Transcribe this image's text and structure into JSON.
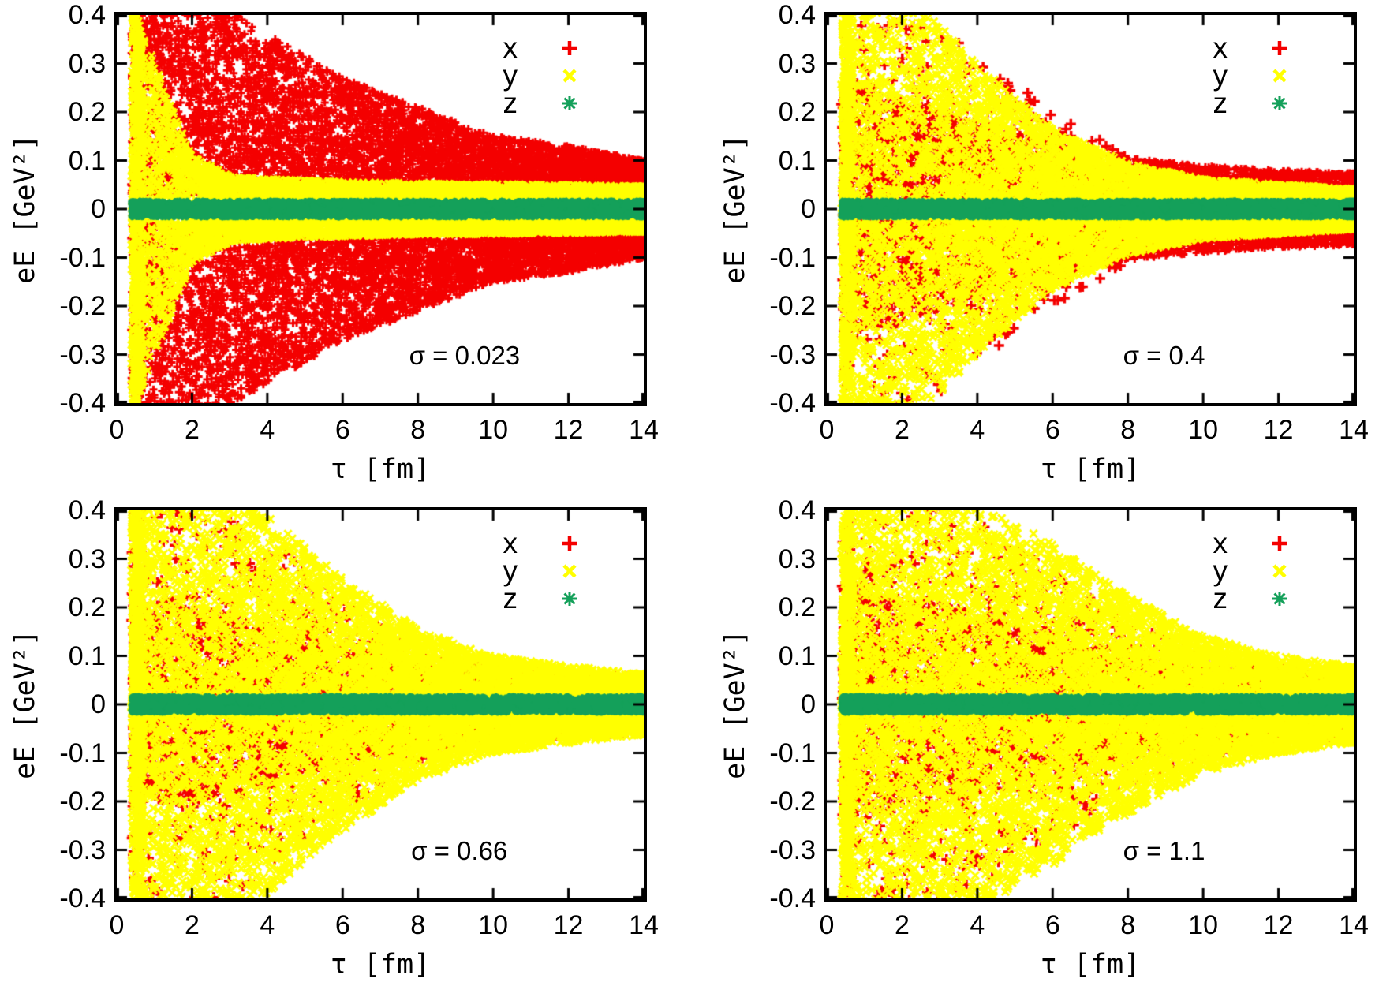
{
  "page": {
    "background": "#ffffff"
  },
  "chart_data": [
    {
      "type": "scatter",
      "sigma_label": "σ = 0.023",
      "xlabel": "τ [fm]",
      "ylabel": "eE [GeV²]",
      "xlim": [
        0,
        14
      ],
      "ylim": [
        -0.4,
        0.4
      ],
      "xticks": [
        "0",
        "2",
        "4",
        "6",
        "8",
        "10",
        "12",
        "14"
      ],
      "yticks": [
        "0.4",
        "0.3",
        "0.2",
        "0.1",
        "0",
        "-0.1",
        "-0.2",
        "-0.3",
        "-0.4"
      ],
      "grid": false,
      "legend_position": "top-right-inside",
      "legend": [
        {
          "label": "x",
          "marker": "plus",
          "color": "#f40000"
        },
        {
          "label": "y",
          "marker": "cross",
          "color": "#ffff00"
        },
        {
          "label": "z",
          "marker": "star",
          "color": "#14a05a"
        }
      ],
      "sigma_pos": {
        "x": 0.66,
        "y": 0.878
      },
      "tau_knots": [
        0.4,
        1,
        2,
        3,
        4,
        6,
        8,
        10,
        12,
        14
      ],
      "series": [
        {
          "name": "x",
          "marker": "plus",
          "color": "#f40000",
          "mode": "band",
          "inner": 0.028,
          "bias": 1.15,
          "amp": [
            0.43,
            0.43,
            0.43,
            0.41,
            0.36,
            0.27,
            0.21,
            0.15,
            0.13,
            0.1
          ],
          "count": 11000,
          "size": 10,
          "stroke": 3,
          "seed": 11,
          "edge_cluster": 0.04,
          "left_cluster": 0.03
        },
        {
          "name": "y",
          "marker": "cross",
          "color": "#ffff00",
          "mode": "full",
          "bias": 1,
          "amp": [
            0.43,
            0.3,
            0.11,
            0.068,
            0.062,
            0.057,
            0.053,
            0.052,
            0.05,
            0.047
          ],
          "count": 8500,
          "size": 11,
          "stroke": 3,
          "seed": 22,
          "edge_cluster": 0.05,
          "left_cluster": 0.06
        },
        {
          "name": "z",
          "marker": "star",
          "color": "#14a05a",
          "mode": "full",
          "bias": 1,
          "amp": [
            0.017,
            0.017,
            0.017,
            0.017,
            0.017,
            0.017,
            0.017,
            0.017,
            0.017,
            0.017
          ],
          "count": 4000,
          "size": 8,
          "stroke": 2.5,
          "seed": 33,
          "edge_cluster": 0.05,
          "left_cluster": 0.03
        }
      ]
    },
    {
      "type": "scatter",
      "sigma_label": "σ = 0.4",
      "xlabel": "τ [fm]",
      "ylabel": "eE [GeV²]",
      "xlim": [
        0,
        14
      ],
      "ylim": [
        -0.4,
        0.4
      ],
      "xticks": [
        "0",
        "2",
        "4",
        "6",
        "8",
        "10",
        "12",
        "14"
      ],
      "yticks": [
        "0.4",
        "0.3",
        "0.2",
        "0.1",
        "0",
        "-0.1",
        "-0.2",
        "-0.3",
        "-0.4"
      ],
      "grid": false,
      "legend_position": "top-right-inside",
      "legend": [
        {
          "label": "x",
          "marker": "plus",
          "color": "#f40000"
        },
        {
          "label": "y",
          "marker": "cross",
          "color": "#ffff00"
        },
        {
          "label": "z",
          "marker": "star",
          "color": "#14a05a"
        }
      ],
      "sigma_pos": {
        "x": 0.64,
        "y": 0.878
      },
      "tau_knots": [
        0.4,
        1,
        2,
        3,
        4,
        6,
        8,
        10,
        12,
        14
      ],
      "series": [
        {
          "name": "x",
          "marker": "plus",
          "color": "#f40000",
          "mode": "full",
          "bias": 1,
          "amp": [
            0.43,
            0.43,
            0.42,
            0.38,
            0.32,
            0.2,
            0.11,
            0.07,
            0.05,
            0.045
          ],
          "count": 1000,
          "size": 13,
          "stroke": 3.5,
          "seed": 44,
          "edge_cluster": 0.02,
          "left_cluster": 0.04
        },
        {
          "name": "x",
          "marker": "plus",
          "color": "#f40000",
          "mode": "band",
          "inner": 0.012,
          "bias": 1.2,
          "amp": [
            0.26,
            0.25,
            0.23,
            0.21,
            0.18,
            0.135,
            0.105,
            0.09,
            0.08,
            0.075
          ],
          "count": 7000,
          "size": 9,
          "stroke": 3,
          "seed": 55,
          "edge_cluster": 0.05,
          "left_cluster": 0.02
        },
        {
          "name": "y",
          "marker": "cross",
          "color": "#ffff00",
          "mode": "full",
          "bias": 1.4,
          "amp": [
            0.43,
            0.43,
            0.43,
            0.38,
            0.3,
            0.165,
            0.095,
            0.062,
            0.052,
            0.042
          ],
          "count": 10000,
          "size": 11,
          "stroke": 3,
          "seed": 66,
          "edge_cluster": 0.05,
          "left_cluster": 0.06
        },
        {
          "name": "z",
          "marker": "star",
          "color": "#14a05a",
          "mode": "full",
          "bias": 1,
          "amp": [
            0.017,
            0.017,
            0.017,
            0.017,
            0.017,
            0.017,
            0.017,
            0.017,
            0.017,
            0.017
          ],
          "count": 4000,
          "size": 8,
          "stroke": 2.5,
          "seed": 77,
          "edge_cluster": 0.05,
          "left_cluster": 0.03
        }
      ]
    },
    {
      "type": "scatter",
      "sigma_label": "σ = 0.66",
      "xlabel": "τ [fm]",
      "ylabel": "eE [GeV²]",
      "xlim": [
        0,
        14
      ],
      "ylim": [
        -0.4,
        0.4
      ],
      "xticks": [
        "0",
        "2",
        "4",
        "6",
        "8",
        "10",
        "12",
        "14"
      ],
      "yticks": [
        "0.4",
        "0.3",
        "0.2",
        "0.1",
        "0",
        "-0.1",
        "-0.2",
        "-0.3",
        "-0.4"
      ],
      "grid": false,
      "legend_position": "top-right-inside",
      "legend": [
        {
          "label": "x",
          "marker": "plus",
          "color": "#f40000"
        },
        {
          "label": "y",
          "marker": "cross",
          "color": "#ffff00"
        },
        {
          "label": "z",
          "marker": "star",
          "color": "#14a05a"
        }
      ],
      "sigma_pos": {
        "x": 0.65,
        "y": 0.878
      },
      "tau_knots": [
        0.4,
        1,
        2,
        3,
        4,
        6,
        8,
        10,
        12,
        14
      ],
      "series": [
        {
          "name": "x",
          "marker": "plus",
          "color": "#f40000",
          "mode": "full",
          "bias": 1,
          "amp": [
            0.43,
            0.43,
            0.43,
            0.4,
            0.34,
            0.22,
            0.12,
            0.08,
            0.06,
            0.05
          ],
          "count": 1200,
          "size": 13,
          "stroke": 3.5,
          "seed": 88,
          "edge_cluster": 0.02,
          "left_cluster": 0.04
        },
        {
          "name": "x",
          "marker": "plus",
          "color": "#f40000",
          "mode": "band",
          "inner": 0.01,
          "bias": 1.2,
          "amp": [
            0.21,
            0.21,
            0.2,
            0.19,
            0.165,
            0.125,
            0.095,
            0.078,
            0.068,
            0.06
          ],
          "count": 5000,
          "size": 9,
          "stroke": 3,
          "seed": 99,
          "edge_cluster": 0.05,
          "left_cluster": 0.02
        },
        {
          "name": "y",
          "marker": "cross",
          "color": "#ffff00",
          "mode": "full",
          "bias": 1.45,
          "amp": [
            0.43,
            0.43,
            0.43,
            0.43,
            0.39,
            0.26,
            0.155,
            0.1,
            0.08,
            0.062
          ],
          "count": 10000,
          "size": 12,
          "stroke": 3,
          "seed": 111,
          "edge_cluster": 0.05,
          "left_cluster": 0.06
        },
        {
          "name": "z",
          "marker": "star",
          "color": "#14a05a",
          "mode": "full",
          "bias": 1,
          "amp": [
            0.017,
            0.017,
            0.017,
            0.017,
            0.017,
            0.017,
            0.017,
            0.017,
            0.017,
            0.017
          ],
          "count": 4000,
          "size": 8,
          "stroke": 2.5,
          "seed": 122,
          "edge_cluster": 0.05,
          "left_cluster": 0.03
        }
      ]
    },
    {
      "type": "scatter",
      "sigma_label": "σ = 1.1",
      "xlabel": "τ [fm]",
      "ylabel": "eE [GeV²]",
      "xlim": [
        0,
        14
      ],
      "ylim": [
        -0.4,
        0.4
      ],
      "xticks": [
        "0",
        "2",
        "4",
        "6",
        "8",
        "10",
        "12",
        "14"
      ],
      "yticks": [
        "0.4",
        "0.3",
        "0.2",
        "0.1",
        "0",
        "-0.1",
        "-0.2",
        "-0.3",
        "-0.4"
      ],
      "grid": false,
      "legend_position": "top-right-inside",
      "legend": [
        {
          "label": "x",
          "marker": "plus",
          "color": "#f40000"
        },
        {
          "label": "y",
          "marker": "cross",
          "color": "#ffff00"
        },
        {
          "label": "z",
          "marker": "star",
          "color": "#14a05a"
        }
      ],
      "sigma_pos": {
        "x": 0.64,
        "y": 0.878
      },
      "tau_knots": [
        0.4,
        1,
        2,
        3,
        4,
        6,
        8,
        10,
        12,
        14
      ],
      "series": [
        {
          "name": "x",
          "marker": "plus",
          "color": "#f40000",
          "mode": "full",
          "bias": 1,
          "amp": [
            0.43,
            0.43,
            0.43,
            0.42,
            0.38,
            0.28,
            0.17,
            0.105,
            0.085,
            0.065
          ],
          "count": 1200,
          "size": 13,
          "stroke": 3.5,
          "seed": 133,
          "edge_cluster": 0.02,
          "left_cluster": 0.04
        },
        {
          "name": "x",
          "marker": "plus",
          "color": "#f40000",
          "mode": "band",
          "inner": 0.01,
          "bias": 1.2,
          "amp": [
            0.23,
            0.23,
            0.22,
            0.21,
            0.185,
            0.145,
            0.11,
            0.088,
            0.075,
            0.068
          ],
          "count": 4500,
          "size": 9,
          "stroke": 3,
          "seed": 144,
          "edge_cluster": 0.05,
          "left_cluster": 0.02
        },
        {
          "name": "y",
          "marker": "cross",
          "color": "#ffff00",
          "mode": "full",
          "bias": 1.45,
          "amp": [
            0.43,
            0.43,
            0.43,
            0.43,
            0.42,
            0.33,
            0.225,
            0.14,
            0.1,
            0.078
          ],
          "count": 10000,
          "size": 12,
          "stroke": 3,
          "seed": 155,
          "edge_cluster": 0.05,
          "left_cluster": 0.06
        },
        {
          "name": "z",
          "marker": "star",
          "color": "#14a05a",
          "mode": "full",
          "bias": 1,
          "amp": [
            0.017,
            0.017,
            0.017,
            0.017,
            0.017,
            0.017,
            0.017,
            0.017,
            0.017,
            0.017
          ],
          "count": 4000,
          "size": 8,
          "stroke": 2.5,
          "seed": 166,
          "edge_cluster": 0.05,
          "left_cluster": 0.03
        }
      ]
    }
  ]
}
